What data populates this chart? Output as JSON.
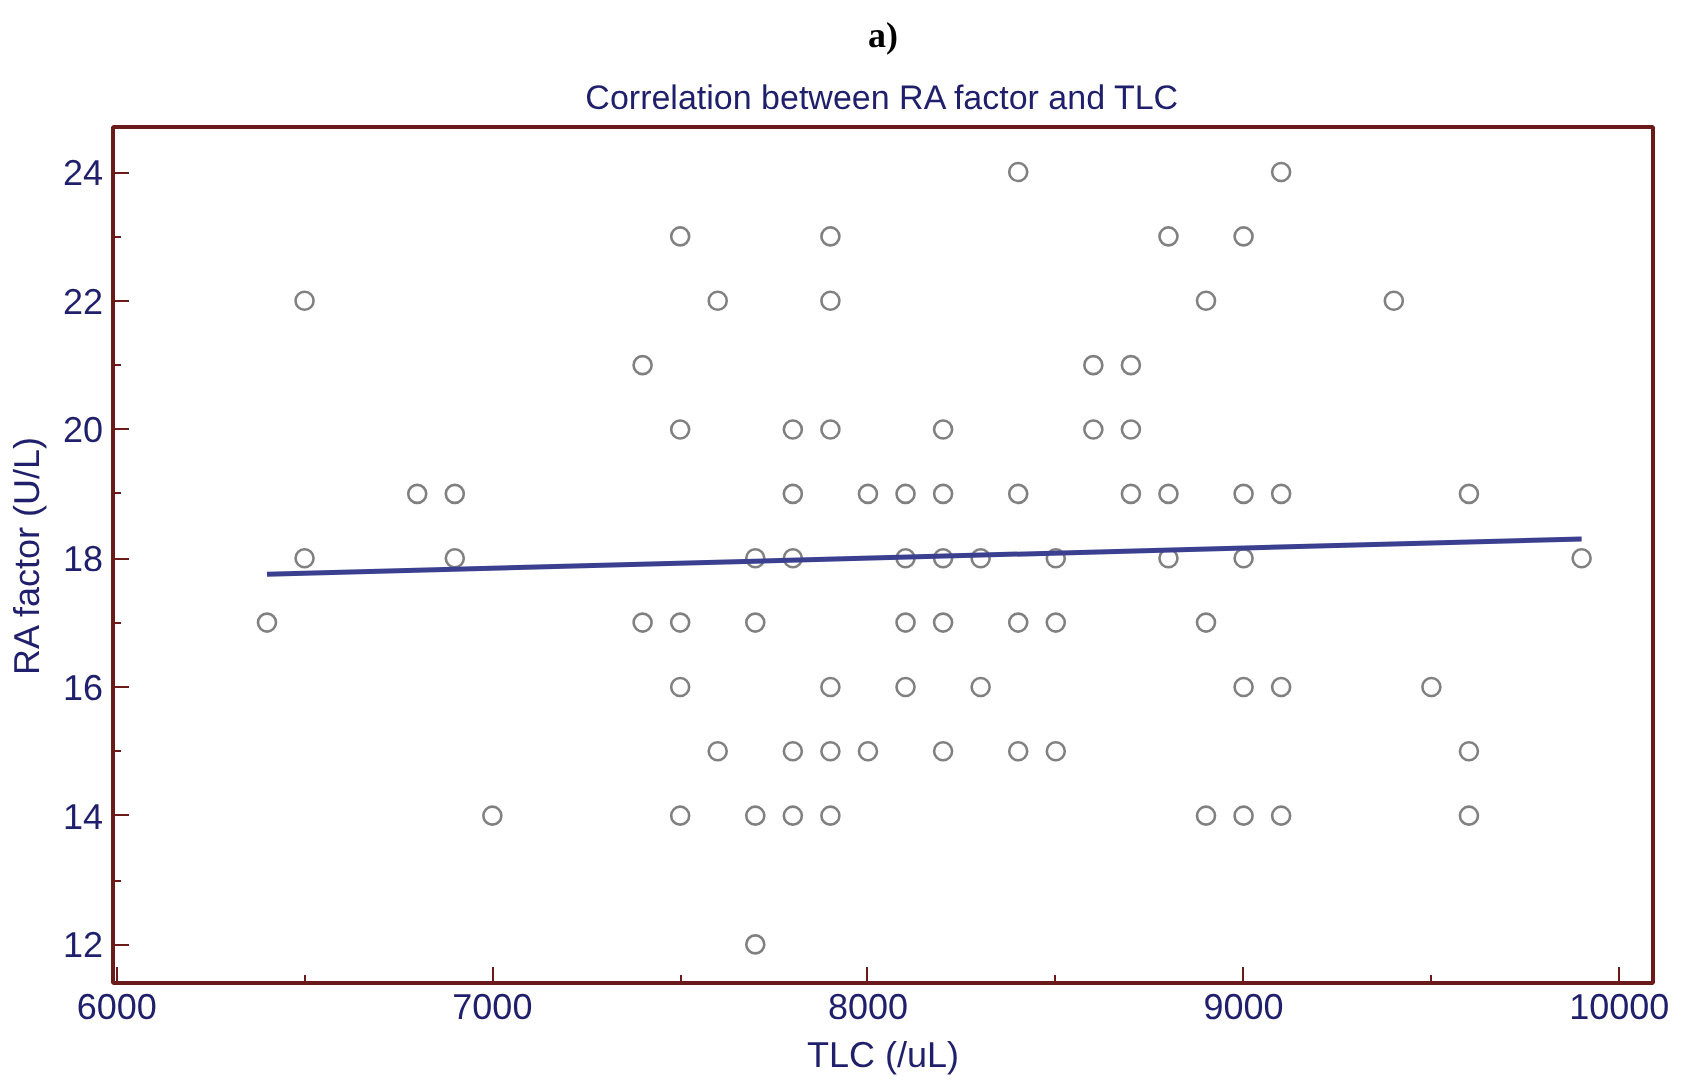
{
  "chart_data": {
    "type": "scatter",
    "title": "Correlation between RA factor and TLC",
    "xlabel": "TLC (/uL)",
    "ylabel": "RA factor (U/L)",
    "annotations": [
      "a)"
    ],
    "xlim": [
      5990,
      10090
    ],
    "ylim": [
      11.4,
      24.7
    ],
    "xticks": [
      6000,
      7000,
      8000,
      9000,
      10000
    ],
    "yticks": [
      12,
      14,
      16,
      18,
      20,
      22,
      24
    ],
    "grid": false,
    "series": [
      {
        "color": "#808080",
        "marker": "circle",
        "x": [
          8400,
          9100,
          7500,
          7900,
          8800,
          9000,
          7600,
          7900,
          6500,
          8900,
          9400,
          7400,
          8600,
          8700,
          7500,
          7800,
          7900,
          8200,
          8600,
          8700,
          6800,
          6900,
          7800,
          8000,
          8100,
          8200,
          8400,
          8700,
          8800,
          9000,
          9100,
          9600,
          6500,
          6900,
          7700,
          7800,
          8100,
          8200,
          8300,
          8500,
          8800,
          9000,
          9900,
          6400,
          7400,
          7500,
          7700,
          8100,
          8200,
          8400,
          8500,
          8900,
          7500,
          7900,
          8100,
          8300,
          9000,
          9100,
          9500,
          7600,
          7800,
          7900,
          8000,
          8200,
          8400,
          8500,
          9600,
          7000,
          7500,
          7700,
          7800,
          7900,
          8900,
          9000,
          9100,
          9600,
          7700
        ],
        "values": [
          24,
          24,
          23,
          23,
          23,
          23,
          22,
          22,
          22,
          22,
          22,
          21,
          21,
          21,
          20,
          20,
          20,
          20,
          20,
          20,
          19,
          19,
          19,
          19,
          19,
          19,
          19,
          19,
          19,
          19,
          19,
          19,
          18,
          18,
          18,
          18,
          18,
          18,
          18,
          18,
          18,
          18,
          18,
          17,
          17,
          17,
          17,
          17,
          17,
          17,
          17,
          17,
          16,
          16,
          16,
          16,
          16,
          16,
          16,
          15,
          15,
          15,
          15,
          15,
          15,
          15,
          15,
          14,
          14,
          14,
          14,
          14,
          14,
          14,
          14,
          14,
          12
        ]
      },
      {
        "type": "line",
        "color": "#3a3f8f",
        "x": [
          6400,
          9900
        ],
        "values": [
          17.75,
          18.3
        ]
      }
    ]
  }
}
